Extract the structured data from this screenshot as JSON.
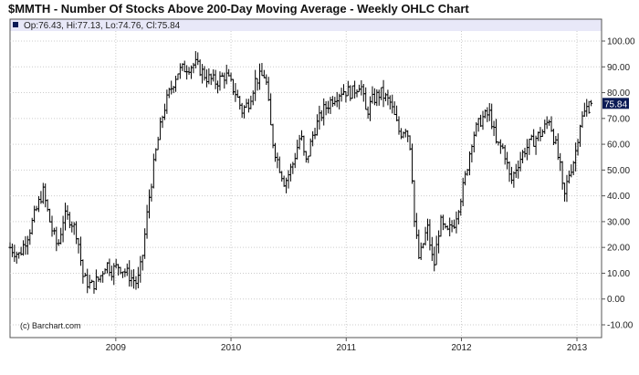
{
  "title": "$MMTH - Number Of Stocks Above 200-Day Moving Average - Weekly OHLC Chart",
  "header": {
    "ohlc_text": "Op:76.43, Hi:77.13, Lo:74.76, Cl:75.84",
    "bg_color": "#e8e8f8"
  },
  "last_price": {
    "label": "75.84",
    "value": 75.84,
    "bg_color": "#0a1a55",
    "text_color": "#ffffff"
  },
  "watermark": "(c) Barchart.com",
  "colors": {
    "bars": "#000000",
    "grid": "#cccccc",
    "axis": "#555555",
    "text": "#222222"
  },
  "chart_data": {
    "type": "ohlc",
    "title": "$MMTH - Number Of Stocks Above 200-Day Moving Average - Weekly OHLC Chart",
    "frequency": "weekly",
    "grid": true,
    "y_axis_position": "right",
    "ylim": [
      -10,
      100
    ],
    "y_ticks": [
      "-10.00",
      "0.00",
      "10.00",
      "20.00",
      "30.00",
      "40.00",
      "50.00",
      "60.00",
      "70.00",
      "80.00",
      "90.00",
      "100.00"
    ],
    "y_tick_values": [
      -10,
      0,
      10,
      20,
      30,
      40,
      50,
      60,
      70,
      80,
      90,
      100
    ],
    "xlim": [
      "2008-02-01",
      "2013-03-20"
    ],
    "x_ticks": [
      {
        "label": "2009",
        "date": "2009-01-01"
      },
      {
        "label": "2010",
        "date": "2010-01-01"
      },
      {
        "label": "2011",
        "date": "2011-01-01"
      },
      {
        "label": "2012",
        "date": "2012-01-01"
      },
      {
        "label": "2013",
        "date": "2013-01-01"
      }
    ],
    "close_path": [
      [
        "2008-02-01",
        20
      ],
      [
        "2008-03-01",
        17
      ],
      [
        "2008-04-01",
        26
      ],
      [
        "2008-05-15",
        42
      ],
      [
        "2008-06-10",
        28
      ],
      [
        "2008-07-01",
        20
      ],
      [
        "2008-07-20",
        32
      ],
      [
        "2008-08-10",
        31
      ],
      [
        "2008-09-01",
        25
      ],
      [
        "2008-09-20",
        8
      ],
      [
        "2008-10-15",
        5
      ],
      [
        "2008-11-10",
        8
      ],
      [
        "2008-12-01",
        14
      ],
      [
        "2008-12-20",
        11
      ],
      [
        "2009-01-10",
        13
      ],
      [
        "2009-02-05",
        10
      ],
      [
        "2009-03-10",
        6
      ],
      [
        "2009-03-25",
        15
      ],
      [
        "2009-04-15",
        38
      ],
      [
        "2009-05-05",
        55
      ],
      [
        "2009-06-01",
        73
      ],
      [
        "2009-06-20",
        80
      ],
      [
        "2009-07-15",
        88
      ],
      [
        "2009-08-15",
        90
      ],
      [
        "2009-09-10",
        91
      ],
      [
        "2009-09-25",
        89
      ],
      [
        "2009-10-15",
        86
      ],
      [
        "2009-11-15",
        84
      ],
      [
        "2009-12-15",
        87
      ],
      [
        "2010-01-15",
        80
      ],
      [
        "2010-02-05",
        73
      ],
      [
        "2010-02-25",
        76
      ],
      [
        "2010-03-20",
        85
      ],
      [
        "2010-04-20",
        87
      ],
      [
        "2010-05-10",
        63
      ],
      [
        "2010-05-25",
        55
      ],
      [
        "2010-06-20",
        45
      ],
      [
        "2010-07-15",
        52
      ],
      [
        "2010-08-10",
        64
      ],
      [
        "2010-08-25",
        52
      ],
      [
        "2010-09-20",
        65
      ],
      [
        "2010-10-20",
        73
      ],
      [
        "2010-11-20",
        78
      ],
      [
        "2010-12-20",
        81
      ],
      [
        "2011-01-20",
        80
      ],
      [
        "2011-02-15",
        84
      ],
      [
        "2011-03-05",
        72
      ],
      [
        "2011-03-25",
        77
      ],
      [
        "2011-04-20",
        80
      ],
      [
        "2011-05-20",
        76
      ],
      [
        "2011-06-20",
        64
      ],
      [
        "2011-07-10",
        67
      ],
      [
        "2011-07-25",
        58
      ],
      [
        "2011-08-05",
        30
      ],
      [
        "2011-08-20",
        15
      ],
      [
        "2011-09-15",
        28
      ],
      [
        "2011-10-05",
        12
      ],
      [
        "2011-10-25",
        30
      ],
      [
        "2011-11-15",
        25
      ],
      [
        "2011-12-10",
        30
      ],
      [
        "2012-01-10",
        45
      ],
      [
        "2012-02-05",
        63
      ],
      [
        "2012-03-05",
        70
      ],
      [
        "2012-04-01",
        72
      ],
      [
        "2012-04-20",
        60
      ],
      [
        "2012-05-15",
        58
      ],
      [
        "2012-06-05",
        45
      ],
      [
        "2012-06-25",
        52
      ],
      [
        "2012-07-20",
        58
      ],
      [
        "2012-08-20",
        62
      ],
      [
        "2012-09-15",
        65
      ],
      [
        "2012-10-05",
        70
      ],
      [
        "2012-10-25",
        60
      ],
      [
        "2012-11-10",
        50
      ],
      [
        "2012-11-20",
        38
      ],
      [
        "2012-12-05",
        48
      ],
      [
        "2012-12-25",
        55
      ],
      [
        "2013-01-10",
        68
      ],
      [
        "2013-02-01",
        74
      ],
      [
        "2013-02-20",
        75.84
      ]
    ],
    "last_bar": {
      "open": 76.43,
      "high": 77.13,
      "low": 74.76,
      "close": 75.84
    }
  }
}
